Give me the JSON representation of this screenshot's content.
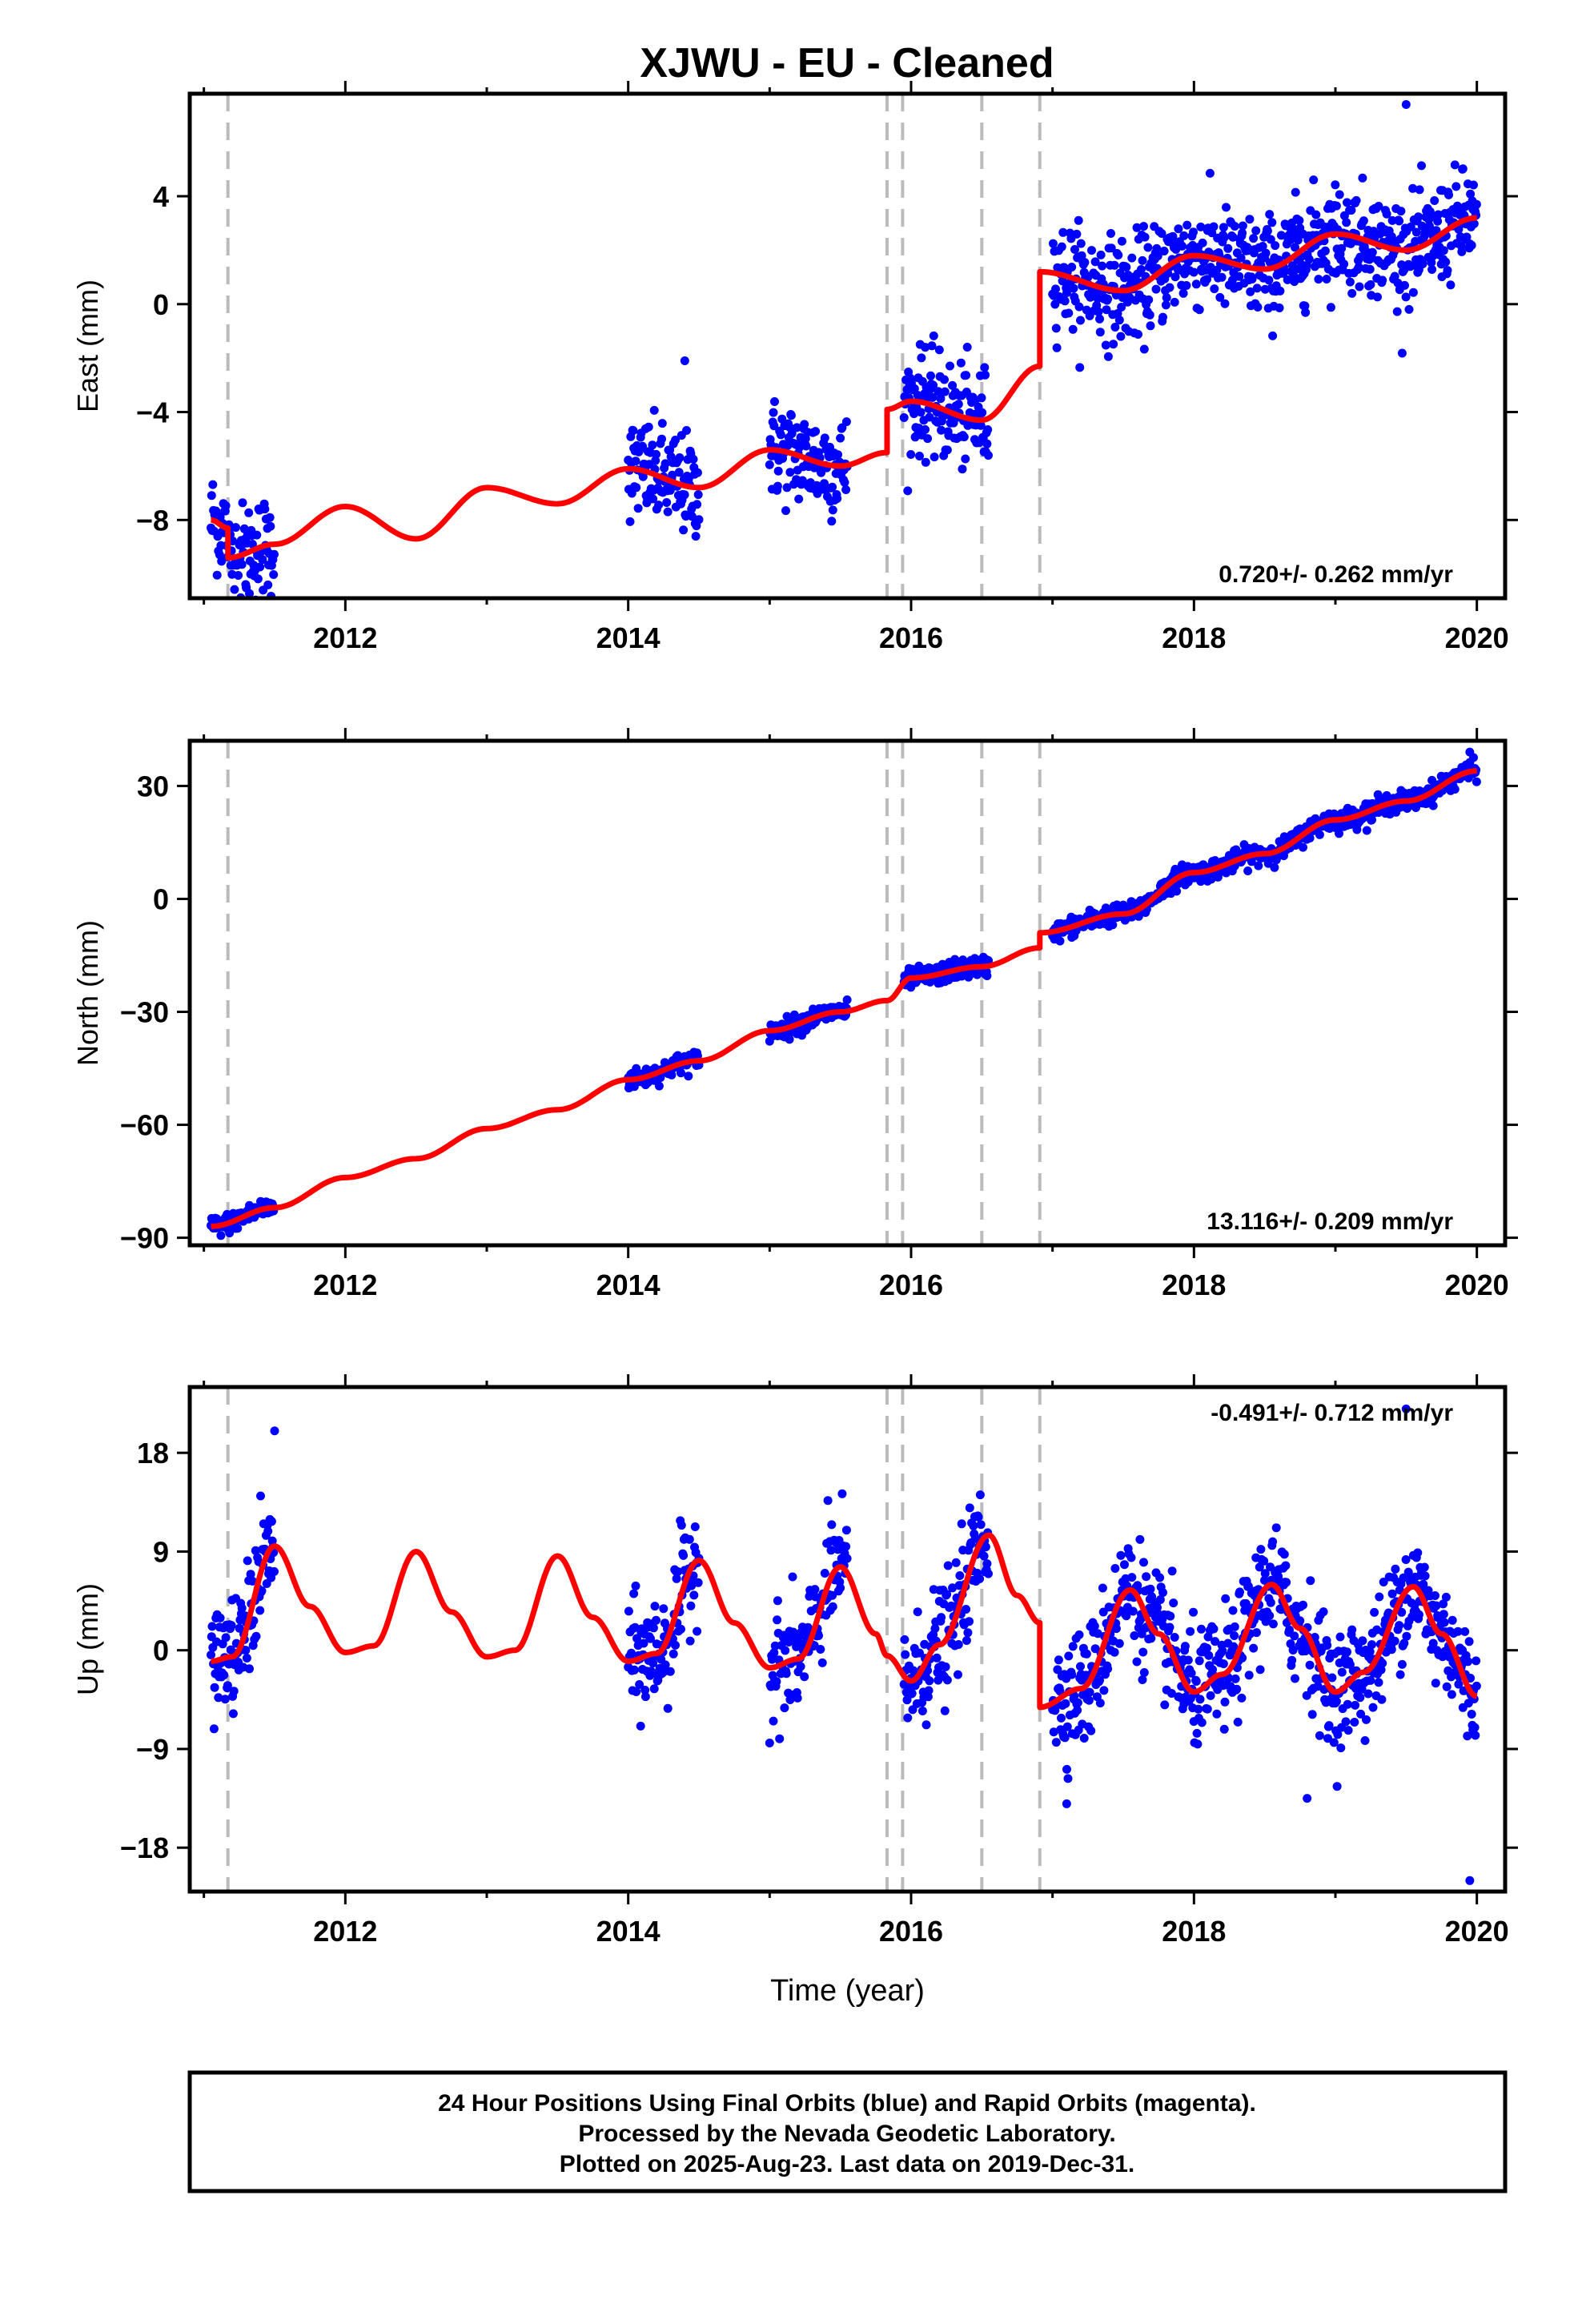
{
  "title": "XJWU  - EU - Cleaned",
  "footer": {
    "line1": "24 Hour Positions Using Final Orbits (blue) and Rapid Orbits (magenta).",
    "line2": "Processed by the Nevada Geodetic Laboratory.",
    "line3": "Plotted on 2025-Aug-23. Last data on 2019-Dec-31."
  },
  "colors": {
    "points": "#0000ff",
    "model": "#ff0000",
    "breaks": "#bbbbbb",
    "frame": "#000000"
  },
  "chart_data": [
    {
      "type": "scatter",
      "ylabel": "East (mm)",
      "xlabel": "",
      "rate": "0.720+/- 0.262 mm/yr",
      "xlim": [
        2010.9,
        2020.2
      ],
      "ylim": [
        -10.9,
        7.8
      ],
      "xticks": [
        2012,
        2014,
        2016,
        2018,
        2020
      ],
      "xtick_labels": [
        "2012",
        "2014",
        "2016",
        "2018",
        "2020"
      ],
      "yticks": [
        -8,
        -4,
        0,
        4
      ],
      "ytick_labels": [
        "−8",
        "−4",
        "0",
        "4"
      ],
      "breaks": [
        2011.17,
        2015.83,
        2015.94,
        2016.5,
        2016.91
      ],
      "data_segments": [
        [
          2011.05,
          2011.5
        ],
        [
          2014.0,
          2014.5
        ],
        [
          2015.0,
          2015.55
        ],
        [
          2015.95,
          2016.55
        ],
        [
          2017.0,
          2020.0
        ]
      ],
      "trend": {
        "rate": 0.72,
        "y2011": -9.6,
        "offsets": [
          [
            2011.17,
            -0.6
          ],
          [
            2015.83,
            1.6
          ],
          [
            2016.91,
            3.6
          ]
        ],
        "annual_amp": 0.75,
        "annual_phase": 0.0
      },
      "model": {
        "x": [
          2011.05,
          2011.17,
          2011.17,
          2011.5,
          2012.0,
          2012.5,
          2013.0,
          2013.5,
          2014.0,
          2014.5,
          2015.0,
          2015.5,
          2015.83,
          2015.83,
          2016.0,
          2016.5,
          2016.91,
          2016.91,
          2017.5,
          2018.0,
          2018.5,
          2019.0,
          2019.5,
          2020.0
        ],
        "y": [
          -8.0,
          -8.3,
          -9.4,
          -8.9,
          -7.5,
          -8.7,
          -6.8,
          -7.4,
          -6.1,
          -6.8,
          -5.4,
          -6.0,
          -5.5,
          -3.9,
          -3.6,
          -4.3,
          -2.3,
          1.2,
          0.5,
          1.8,
          1.3,
          2.6,
          2.0,
          3.2
        ]
      },
      "noise": 0.95,
      "outliers": [
        {
          "x": 2014.4,
          "y": -2.1
        },
        {
          "x": 2019.5,
          "y": 7.4
        },
        {
          "x": 2016.1,
          "y": -1.6
        },
        {
          "x": 2011.3,
          "y": -10.5
        }
      ]
    },
    {
      "type": "scatter",
      "ylabel": "North (mm)",
      "xlabel": "",
      "rate": "13.116+/- 0.209 mm/yr",
      "xlim": [
        2010.9,
        2020.2
      ],
      "ylim": [
        -92,
        42
      ],
      "xticks": [
        2012,
        2014,
        2016,
        2018,
        2020
      ],
      "xtick_labels": [
        "2012",
        "2014",
        "2016",
        "2018",
        "2020"
      ],
      "yticks": [
        -90,
        -60,
        -30,
        0,
        30
      ],
      "ytick_labels": [
        "−90",
        "−60",
        "−30",
        "0",
        "30"
      ],
      "breaks": [
        2011.17,
        2015.83,
        2015.94,
        2016.5,
        2016.91
      ],
      "data_segments": [
        [
          2011.05,
          2011.5
        ],
        [
          2014.0,
          2014.5
        ],
        [
          2015.0,
          2015.55
        ],
        [
          2015.95,
          2016.55
        ],
        [
          2017.0,
          2020.0
        ]
      ],
      "model": {
        "x": [
          2011.05,
          2011.5,
          2012.0,
          2012.5,
          2013.0,
          2013.5,
          2014.0,
          2014.5,
          2015.0,
          2015.5,
          2015.83,
          2016.0,
          2016.5,
          2016.91,
          2016.91,
          2017.5,
          2018.0,
          2018.5,
          2019.0,
          2019.5,
          2020.0
        ],
        "y": [
          -87,
          -82,
          -74,
          -69,
          -61,
          -56,
          -48,
          -43,
          -35,
          -30,
          -27,
          -21,
          -18,
          -13,
          -9,
          -4,
          7,
          12,
          21,
          26,
          34
        ]
      },
      "noise": 1.3,
      "outliers": [
        {
          "x": 2019.95,
          "y": 39
        }
      ]
    },
    {
      "type": "scatter",
      "ylabel": "Up (mm)",
      "xlabel": "Time (year)",
      "rate": "-0.491+/- 0.712 mm/yr",
      "xlim": [
        2010.9,
        2020.2
      ],
      "ylim": [
        -22,
        24
      ],
      "xticks": [
        2012,
        2014,
        2016,
        2018,
        2020
      ],
      "xtick_labels": [
        "2012",
        "2014",
        "2016",
        "2018",
        "2020"
      ],
      "yticks": [
        -18,
        -9,
        0,
        9,
        18
      ],
      "ytick_labels": [
        "−18",
        "−9",
        "0",
        "9",
        "18"
      ],
      "breaks": [
        2011.17,
        2015.83,
        2015.94,
        2016.5,
        2016.91
      ],
      "data_segments": [
        [
          2011.05,
          2011.5
        ],
        [
          2014.0,
          2014.5
        ],
        [
          2015.0,
          2015.55
        ],
        [
          2015.95,
          2016.55
        ],
        [
          2017.0,
          2020.0
        ]
      ],
      "model": {
        "x": [
          2011.05,
          2011.2,
          2011.5,
          2011.75,
          2012.0,
          2012.2,
          2012.5,
          2012.75,
          2013.0,
          2013.2,
          2013.5,
          2013.75,
          2014.0,
          2014.2,
          2014.5,
          2014.75,
          2015.0,
          2015.2,
          2015.5,
          2015.75,
          2015.83,
          2016.0,
          2016.2,
          2016.55,
          2016.75,
          2016.91,
          2016.91,
          2017.2,
          2017.55,
          2017.75,
          2018.0,
          2018.2,
          2018.55,
          2018.75,
          2019.0,
          2019.2,
          2019.55,
          2019.75,
          2020.0
        ],
        "y": [
          -1.0,
          -0.6,
          9.5,
          4.0,
          -0.2,
          0.4,
          9.0,
          3.5,
          -0.6,
          0.0,
          8.6,
          3.0,
          -1.0,
          -0.3,
          8.2,
          2.5,
          -1.6,
          -0.8,
          7.6,
          1.5,
          -0.5,
          -2.8,
          0.5,
          10.5,
          5.0,
          2.5,
          -5.2,
          -3.5,
          5.5,
          1.5,
          -3.8,
          -2.2,
          6.0,
          2.0,
          -3.8,
          -2.0,
          5.8,
          1.5,
          -4.2
        ]
      },
      "noise": 2.6,
      "outliers": [
        {
          "x": 2011.5,
          "y": 20
        },
        {
          "x": 2019.5,
          "y": 22
        },
        {
          "x": 2019.95,
          "y": -21
        },
        {
          "x": 2017.1,
          "y": -14
        },
        {
          "x": 2018.8,
          "y": -13.5
        }
      ]
    }
  ]
}
